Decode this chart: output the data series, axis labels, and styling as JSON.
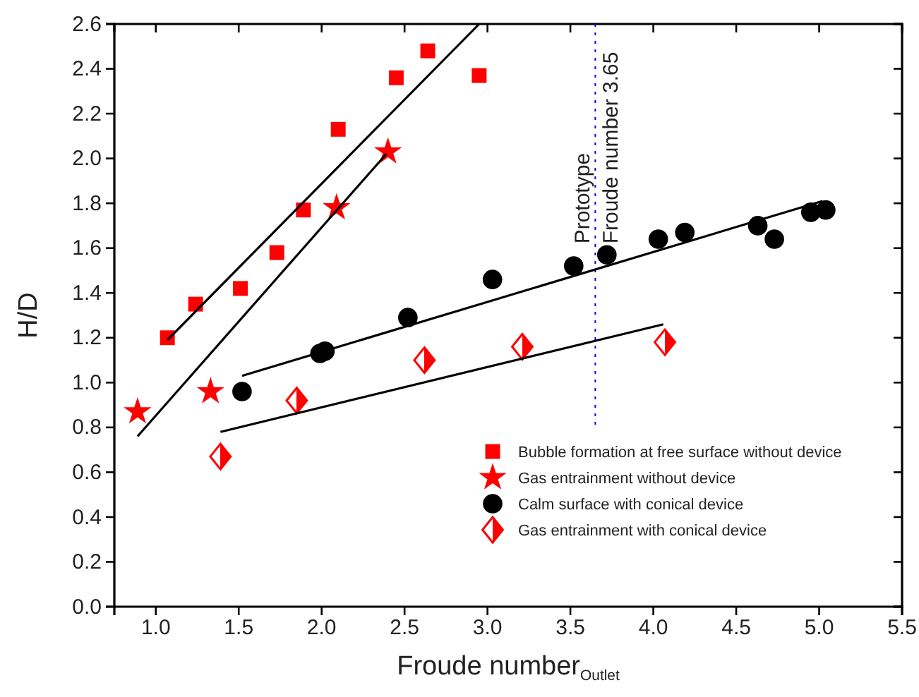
{
  "chart_data": {
    "type": "scatter",
    "xlabel": "Froude number$_{Outlet}$",
    "ylabel": "H/D",
    "xlim": [
      0.75,
      5.5
    ],
    "xticks": [
      {
        "value": 1,
        "label": "1.0"
      },
      {
        "value": 1.5,
        "label": "1.5"
      },
      {
        "value": 2,
        "label": "2.0"
      },
      {
        "value": 2.5,
        "label": "2.5"
      },
      {
        "value": 3,
        "label": "3.0"
      },
      {
        "value": 3.5,
        "label": "3.5"
      },
      {
        "value": 4,
        "label": "4.0"
      },
      {
        "value": 4.5,
        "label": "4.5"
      },
      {
        "value": 5,
        "label": "5.0"
      },
      {
        "value": 5.5,
        "label": "5.5"
      }
    ],
    "ylim": [
      0,
      2.6
    ],
    "yticks": [
      {
        "value": 0,
        "label": "0.0"
      },
      {
        "value": 0.2,
        "label": "0.2"
      },
      {
        "value": 0.4,
        "label": "0.4"
      },
      {
        "value": 0.6,
        "label": "0.6"
      },
      {
        "value": 0.8,
        "label": "0.8"
      },
      {
        "value": 1,
        "label": "1.0"
      },
      {
        "value": 1.2,
        "label": "1.2"
      },
      {
        "value": 1.4,
        "label": "1.4"
      },
      {
        "value": 1.6,
        "label": "1.6"
      },
      {
        "value": 1.8,
        "label": "1.8"
      },
      {
        "value": 2,
        "label": "2.0"
      },
      {
        "value": 2.2,
        "label": "2.2"
      },
      {
        "value": 2.4,
        "label": "2.4"
      },
      {
        "value": 2.6,
        "label": "2.6"
      }
    ],
    "grid": false,
    "legend": "bottom right",
    "series": [
      {
        "name": "Bubble formation at free surface without device",
        "color": "#ff0000",
        "marker": "square",
        "x": [
          1.07,
          1.24,
          1.51,
          1.73,
          1.89,
          2.1,
          2.45,
          2.64,
          2.95
        ],
        "values": [
          1.2,
          1.35,
          1.42,
          1.58,
          1.77,
          2.13,
          2.36,
          2.48,
          2.37
        ]
      },
      {
        "name": "Gas entrainment without device",
        "color": "#ff0000",
        "marker": "star",
        "x": [
          0.89,
          1.33,
          2.09,
          2.4
        ],
        "values": [
          0.87,
          0.96,
          1.78,
          2.03
        ]
      },
      {
        "name": "Calm surface with conical device",
        "color": "#000000",
        "marker": "circle",
        "x": [
          1.52,
          1.99,
          2.02,
          2.52,
          3.03,
          3.52,
          3.72,
          4.03,
          4.19,
          4.63,
          4.73,
          4.95,
          5.04
        ],
        "values": [
          0.96,
          1.13,
          1.14,
          1.29,
          1.46,
          1.52,
          1.57,
          1.64,
          1.67,
          1.7,
          1.64,
          1.76,
          1.77
        ]
      },
      {
        "name": "Gas entrainment with conical device",
        "color": "#ff0000",
        "marker": "diamond",
        "x": [
          1.39,
          1.85,
          2.62,
          3.21,
          4.07
        ],
        "values": [
          0.67,
          0.92,
          1.1,
          1.16,
          1.18
        ]
      },
      {
        "type": "line",
        "color": "#000000",
        "marker": "none",
        "x": [
          1.07,
          2.95
        ],
        "values": [
          1.19,
          2.6
        ]
      },
      {
        "type": "line",
        "color": "#000000",
        "marker": "none",
        "x": [
          0.89,
          2.39
        ],
        "values": [
          0.76,
          2.02
        ]
      },
      {
        "type": "line",
        "color": "#000000",
        "marker": "none",
        "x": [
          1.52,
          5.02
        ],
        "values": [
          1.03,
          1.81
        ]
      },
      {
        "type": "line",
        "color": "#000000",
        "marker": "none",
        "x": [
          1.39,
          4.06
        ],
        "values": [
          0.78,
          1.26
        ]
      }
    ],
    "ref_lines": [
      {
        "axis": "x",
        "value": 3.65,
        "label": "Prototype\nFroude number 3.65",
        "color": "#0000ff",
        "line_style": "dotted"
      }
    ]
  }
}
